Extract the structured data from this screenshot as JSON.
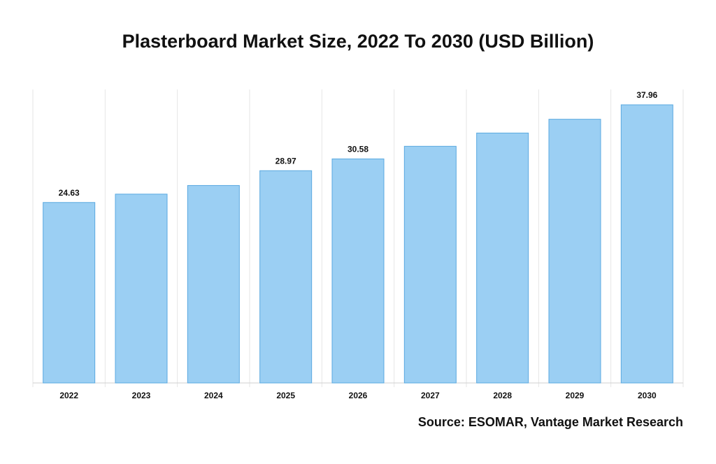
{
  "chart_data": {
    "type": "bar",
    "title": "Plasterboard Market Size, 2022 To 2030 (USD Billion)",
    "categories": [
      "2022",
      "2023",
      "2024",
      "2025",
      "2026",
      "2027",
      "2028",
      "2029",
      "2030"
    ],
    "values": [
      24.63,
      25.77,
      26.95,
      28.97,
      30.58,
      32.3,
      34.11,
      35.99,
      37.96
    ],
    "data_labels": [
      "24.63",
      "",
      "",
      "28.97",
      "30.58",
      "",
      "",
      "",
      "37.96"
    ],
    "xlabel": "",
    "ylabel": "",
    "ylim": [
      0,
      40
    ],
    "grid": "vertical-only",
    "legend": "none",
    "colors": {
      "bar_fill": "#9bcff3",
      "bar_stroke": "#5aa9e0",
      "gridline": "#e6e6e6",
      "axis": "#d0d0d0",
      "text": "#111111"
    }
  },
  "footer": {
    "source": "Source: ESOMAR, Vantage Market Research"
  }
}
